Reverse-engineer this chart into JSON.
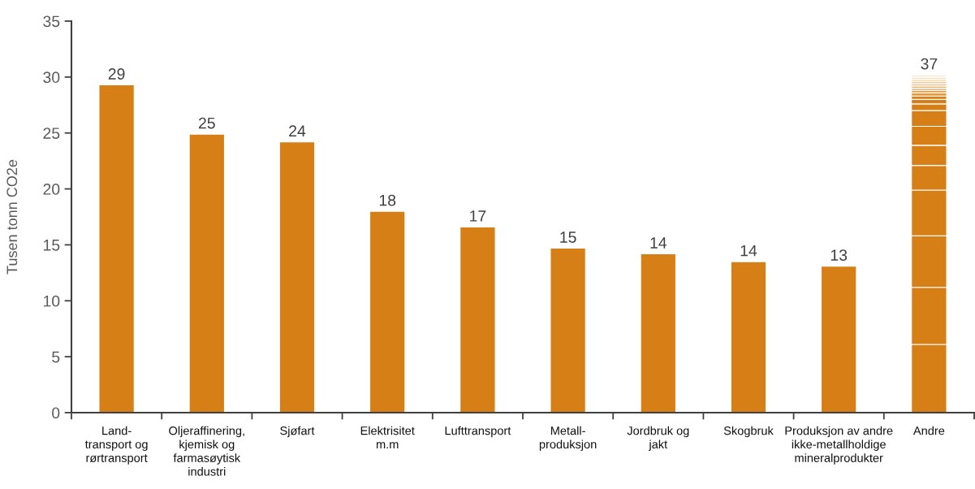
{
  "chart_data": {
    "type": "bar",
    "ylabel": "Tusen tonn CO2e",
    "stacked": true,
    "ylim": [
      0,
      35
    ],
    "yticks": [
      0,
      5,
      10,
      15,
      20,
      25,
      30,
      35
    ],
    "categories": [
      "Land-\ntransport og\nrørtransport",
      "Oljeraffinering,\nkjemisk og\nfarmasøytisk\nindustri",
      "Sjøfart",
      "Elektrisitet\nm.m",
      "Lufttransport",
      "Metall-\nproduksjon",
      "Jordbruk og\njakt",
      "Skogbruk",
      "Produksjon av andre\nikke-metallholdige\nmineralprodukter",
      "Andre"
    ],
    "series": [
      {
        "color": "#d67f17",
        "values": [
          29.3,
          24.9,
          24.2,
          18.0,
          16.6,
          14.7,
          14.2,
          13.5,
          13.1,
          6.1
        ],
        "value_labels": [
          "29",
          "25",
          "24",
          "18",
          "17",
          "15",
          "14",
          "14",
          "13",
          null
        ]
      },
      {
        "color": "#d67f17",
        "values": [
          null,
          null,
          null,
          null,
          null,
          null,
          null,
          null,
          null,
          5.1
        ]
      },
      {
        "color": "#d67f17",
        "values": [
          null,
          null,
          null,
          null,
          null,
          null,
          null,
          null,
          null,
          4.6
        ]
      },
      {
        "color": "#d67f17",
        "values": [
          null,
          null,
          null,
          null,
          null,
          null,
          null,
          null,
          null,
          4.1
        ]
      },
      {
        "color": "#d67f17",
        "values": [
          null,
          null,
          null,
          null,
          null,
          null,
          null,
          null,
          null,
          2.2
        ]
      },
      {
        "color": "#d67f17",
        "values": [
          null,
          null,
          null,
          null,
          null,
          null,
          null,
          null,
          null,
          1.8
        ]
      },
      {
        "color": "#d67f17",
        "values": [
          null,
          null,
          null,
          null,
          null,
          null,
          null,
          null,
          null,
          1.7
        ]
      },
      {
        "color": "#d67f17",
        "values": [
          null,
          null,
          null,
          null,
          null,
          null,
          null,
          null,
          null,
          1.4
        ]
      },
      {
        "color": "#d67f17",
        "values": [
          null,
          null,
          null,
          null,
          null,
          null,
          null,
          null,
          null,
          0.6
        ]
      },
      {
        "color": "#d67f17",
        "values": [
          null,
          null,
          null,
          null,
          null,
          null,
          null,
          null,
          null,
          0.4
        ]
      },
      {
        "color": "#d67f17",
        "values": [
          null,
          null,
          null,
          null,
          null,
          null,
          null,
          null,
          null,
          0.3
        ]
      },
      {
        "color": "#eb9a3f",
        "values": [
          null,
          null,
          null,
          null,
          null,
          null,
          null,
          null,
          null,
          0.3
        ]
      },
      {
        "color": "#e2923a",
        "values": [
          null,
          null,
          null,
          null,
          null,
          null,
          null,
          null,
          null,
          0.2
        ]
      },
      {
        "color": "#eaa458",
        "values": [
          null,
          null,
          null,
          null,
          null,
          null,
          null,
          null,
          null,
          0.2
        ]
      },
      {
        "color": "#edb06c",
        "values": [
          null,
          null,
          null,
          null,
          null,
          null,
          null,
          null,
          null,
          0.2
        ]
      },
      {
        "color": "#f0bb80",
        "values": [
          null,
          null,
          null,
          null,
          null,
          null,
          null,
          null,
          null,
          0.2
        ]
      },
      {
        "color": "#f3c895",
        "values": [
          null,
          null,
          null,
          null,
          null,
          null,
          null,
          null,
          null,
          0.2
        ]
      },
      {
        "color": "#f5d3aa",
        "values": [
          null,
          null,
          null,
          null,
          null,
          null,
          null,
          null,
          null,
          0.2
        ]
      },
      {
        "color": "#f8dfc1",
        "values": [
          null,
          null,
          null,
          null,
          null,
          null,
          null,
          null,
          null,
          0.2
        ]
      },
      {
        "color": "#faead6",
        "values": [
          null,
          null,
          null,
          null,
          null,
          null,
          null,
          null,
          null,
          0.2
        ]
      }
    ],
    "totals": [
      null,
      null,
      null,
      null,
      null,
      null,
      null,
      null,
      null,
      "37"
    ]
  }
}
